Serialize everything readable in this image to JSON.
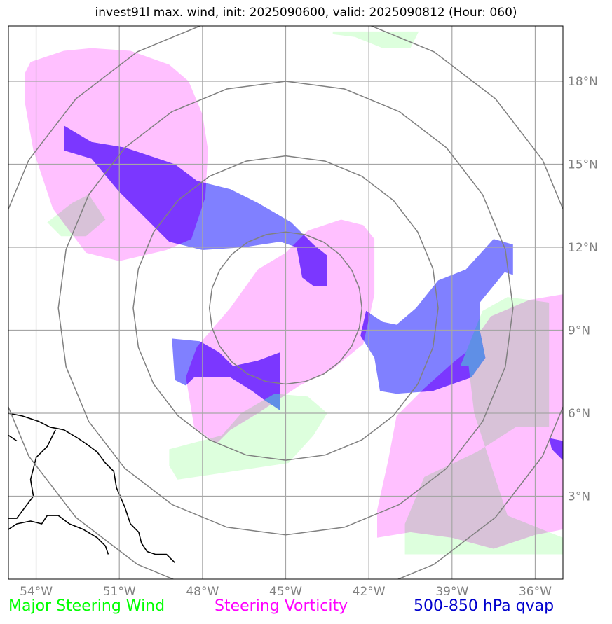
{
  "title": "invest91l max. wind, init: 2025090600, valid: 2025090812 (Hour: 060)",
  "map": {
    "lon_range": [
      -55,
      -35
    ],
    "lat_range": [
      0,
      20
    ],
    "lon_ticks": [
      {
        "value": -54,
        "label": "54°W"
      },
      {
        "value": -51,
        "label": "51°W"
      },
      {
        "value": -48,
        "label": "48°W"
      },
      {
        "value": -45,
        "label": "45°W"
      },
      {
        "value": -42,
        "label": "42°W"
      },
      {
        "value": -39,
        "label": "39°W"
      },
      {
        "value": -36,
        "label": "36°W"
      }
    ],
    "lat_ticks": [
      {
        "value": 18,
        "label": "18°N"
      },
      {
        "value": 15,
        "label": "15°N"
      },
      {
        "value": 12,
        "label": "12°N"
      },
      {
        "value": 9,
        "label": "9°N"
      },
      {
        "value": 6,
        "label": "6°N"
      },
      {
        "value": 3,
        "label": "3°N"
      }
    ],
    "gridlines": true,
    "storm_center": {
      "lon": -45,
      "lat": 9.8
    },
    "range_rings_deg": [
      2.75,
      5.5,
      8.2,
      10.7
    ]
  },
  "legend": {
    "wind": {
      "label": "Major Steering Wind",
      "color": "#00ff00"
    },
    "vorticity": {
      "label": "Steering Vorticity",
      "color": "#ff00ff"
    },
    "qvap": {
      "label": "500-850 hPa qvap",
      "color": "#0000cd"
    }
  },
  "fills": {
    "wind": "#ddffdd",
    "vorticity": "#ffc0ff",
    "qvap": "#8080ff",
    "overlap_vort_qvap": "#7b37ff",
    "overlap_wind_vort": "#d8c2d8",
    "overlap_wind_qvap": "#5f8fe6"
  },
  "regions": {
    "wind": [
      [
        [
          -43.3,
          19.8
        ],
        [
          -40.2,
          19.8
        ],
        [
          -40.5,
          19.2
        ],
        [
          -41.5,
          19.2
        ],
        [
          -42.5,
          19.6
        ],
        [
          -43.3,
          19.7
        ]
      ],
      [
        [
          -53.6,
          12.9
        ],
        [
          -52.7,
          13.6
        ],
        [
          -52.1,
          13.9
        ],
        [
          -51.5,
          13.0
        ],
        [
          -52.2,
          12.4
        ],
        [
          -53.1,
          12.4
        ]
      ],
      [
        [
          -49.2,
          4.7
        ],
        [
          -47.3,
          5.2
        ],
        [
          -46.6,
          6.0
        ],
        [
          -45.4,
          6.7
        ],
        [
          -44.2,
          6.6
        ],
        [
          -43.5,
          6.0
        ],
        [
          -44.0,
          5.2
        ],
        [
          -44.9,
          4.2
        ],
        [
          -48.9,
          3.6
        ],
        [
          -49.2,
          4.1
        ]
      ],
      [
        [
          -38.7,
          7.7
        ],
        [
          -37.9,
          9.7
        ],
        [
          -37.0,
          10.2
        ],
        [
          -35.5,
          10.0
        ],
        [
          -35.5,
          5.5
        ],
        [
          -36.7,
          5.5
        ],
        [
          -38.1,
          4.6
        ],
        [
          -40.0,
          3.7
        ],
        [
          -40.7,
          2.0
        ],
        [
          -40.7,
          0.9
        ],
        [
          -35.0,
          0.9
        ],
        [
          -35.0,
          1.5
        ],
        [
          -37.0,
          2.3
        ],
        [
          -38.2,
          6.0
        ],
        [
          -38.4,
          7.7
        ]
      ]
    ],
    "vorticity": [
      [
        [
          -54.2,
          18.7
        ],
        [
          -53.0,
          19.1
        ],
        [
          -52.0,
          19.2
        ],
        [
          -50.6,
          19.1
        ],
        [
          -49.2,
          18.6
        ],
        [
          -48.5,
          18.0
        ],
        [
          -48.0,
          16.8
        ],
        [
          -47.8,
          15.5
        ],
        [
          -47.9,
          13.8
        ],
        [
          -48.4,
          12.3
        ],
        [
          -49.3,
          11.9
        ],
        [
          -51.0,
          11.5
        ],
        [
          -52.2,
          11.8
        ],
        [
          -53.4,
          13.4
        ],
        [
          -54.1,
          15.5
        ],
        [
          -54.4,
          17.2
        ],
        [
          -54.4,
          18.3
        ]
      ],
      [
        [
          -44.2,
          12.6
        ],
        [
          -43.0,
          13.0
        ],
        [
          -42.2,
          12.8
        ],
        [
          -41.8,
          12.3
        ],
        [
          -41.8,
          10.3
        ],
        [
          -42.2,
          8.5
        ],
        [
          -43.3,
          7.6
        ],
        [
          -44.5,
          7.0
        ],
        [
          -46.0,
          6.0
        ],
        [
          -47.0,
          5.4
        ],
        [
          -47.5,
          4.9
        ],
        [
          -48.3,
          5.5
        ],
        [
          -48.6,
          7.3
        ],
        [
          -48.2,
          8.4
        ],
        [
          -47.0,
          9.8
        ],
        [
          -46.0,
          11.2
        ],
        [
          -45.0,
          11.8
        ]
      ],
      [
        [
          -35.0,
          10.3
        ],
        [
          -36.2,
          10.1
        ],
        [
          -37.6,
          9.5
        ],
        [
          -38.5,
          8.2
        ],
        [
          -39.0,
          7.8
        ],
        [
          -40.0,
          6.9
        ],
        [
          -41.0,
          5.9
        ],
        [
          -41.3,
          4.3
        ],
        [
          -41.7,
          2.5
        ],
        [
          -41.7,
          1.5
        ],
        [
          -40.5,
          1.7
        ],
        [
          -39.0,
          1.5
        ],
        [
          -37.5,
          1.1
        ],
        [
          -36.0,
          1.6
        ],
        [
          -35.0,
          1.8
        ]
      ]
    ],
    "qvap": [
      [
        [
          -53.0,
          16.4
        ],
        [
          -52.0,
          15.8
        ],
        [
          -50.8,
          15.6
        ],
        [
          -49.0,
          15.0
        ],
        [
          -48.2,
          14.4
        ],
        [
          -47.0,
          14.1
        ],
        [
          -46.0,
          13.6
        ],
        [
          -44.8,
          12.9
        ],
        [
          -44.0,
          12.1
        ],
        [
          -43.5,
          11.7
        ],
        [
          -43.5,
          10.6
        ],
        [
          -44.0,
          10.6
        ],
        [
          -44.4,
          10.9
        ],
        [
          -44.6,
          12.0
        ],
        [
          -45.2,
          12.2
        ],
        [
          -46.5,
          12.0
        ],
        [
          -48.0,
          11.9
        ],
        [
          -49.2,
          12.2
        ],
        [
          -50.0,
          13.0
        ],
        [
          -51.0,
          14.0
        ],
        [
          -52.0,
          15.2
        ],
        [
          -53.0,
          15.5
        ]
      ],
      [
        [
          -49.1,
          8.7
        ],
        [
          -48.1,
          8.6
        ],
        [
          -47.4,
          8.2
        ],
        [
          -46.9,
          7.7
        ],
        [
          -46.0,
          7.9
        ],
        [
          -45.2,
          8.2
        ],
        [
          -45.2,
          7.5
        ],
        [
          -45.2,
          6.1
        ],
        [
          -45.8,
          6.5
        ],
        [
          -46.2,
          6.8
        ],
        [
          -47.0,
          7.3
        ],
        [
          -48.3,
          7.3
        ],
        [
          -48.6,
          7.0
        ],
        [
          -49.0,
          7.2
        ]
      ],
      [
        [
          -42.1,
          9.7
        ],
        [
          -41.5,
          9.3
        ],
        [
          -41.0,
          9.2
        ],
        [
          -40.3,
          9.8
        ],
        [
          -39.5,
          10.8
        ],
        [
          -38.5,
          11.2
        ],
        [
          -37.5,
          12.3
        ],
        [
          -36.8,
          12.1
        ],
        [
          -36.8,
          11.0
        ],
        [
          -37.1,
          11.1
        ],
        [
          -38.0,
          10.0
        ],
        [
          -38.0,
          9.0
        ],
        [
          -37.8,
          8.0
        ],
        [
          -38.3,
          7.3
        ],
        [
          -39.7,
          6.8
        ],
        [
          -41.0,
          6.7
        ],
        [
          -41.6,
          6.8
        ],
        [
          -41.8,
          8.0
        ],
        [
          -42.3,
          8.8
        ]
      ],
      [
        [
          -35.0,
          5.0
        ],
        [
          -35.5,
          5.1
        ],
        [
          -35.4,
          4.7
        ],
        [
          -35.2,
          4.5
        ],
        [
          -35.0,
          4.3
        ]
      ]
    ]
  },
  "coast": [
    [
      [
        -55.0,
        6.0
      ],
      [
        -54.5,
        5.9
      ],
      [
        -53.9,
        5.7
      ],
      [
        -53.5,
        5.5
      ],
      [
        -53.0,
        5.4
      ],
      [
        -52.5,
        5.1
      ],
      [
        -52.2,
        4.9
      ],
      [
        -51.8,
        4.6
      ],
      [
        -51.5,
        4.2
      ],
      [
        -51.2,
        3.9
      ],
      [
        -51.1,
        3.3
      ],
      [
        -50.8,
        2.6
      ],
      [
        -50.6,
        2.0
      ],
      [
        -50.3,
        1.7
      ],
      [
        -50.2,
        1.3
      ],
      [
        -50.0,
        1.0
      ],
      [
        -49.7,
        0.9
      ],
      [
        -49.3,
        0.9
      ],
      [
        -49.0,
        0.6
      ]
    ],
    [
      [
        -55.0,
        1.8
      ],
      [
        -54.7,
        2.0
      ],
      [
        -54.2,
        2.1
      ],
      [
        -53.8,
        2.0
      ],
      [
        -53.6,
        2.3
      ],
      [
        -53.2,
        2.3
      ],
      [
        -52.8,
        2.0
      ],
      [
        -52.3,
        1.8
      ],
      [
        -51.8,
        1.5
      ],
      [
        -51.5,
        1.2
      ],
      [
        -51.4,
        0.9
      ]
    ],
    [
      [
        -53.3,
        5.4
      ],
      [
        -53.6,
        4.8
      ],
      [
        -54.0,
        4.4
      ],
      [
        -54.2,
        3.6
      ],
      [
        -54.1,
        3.0
      ],
      [
        -54.4,
        2.6
      ],
      [
        -54.7,
        2.2
      ],
      [
        -55.0,
        2.2
      ]
    ],
    [
      [
        -55.0,
        5.2
      ],
      [
        -54.7,
        5.0
      ]
    ]
  ]
}
